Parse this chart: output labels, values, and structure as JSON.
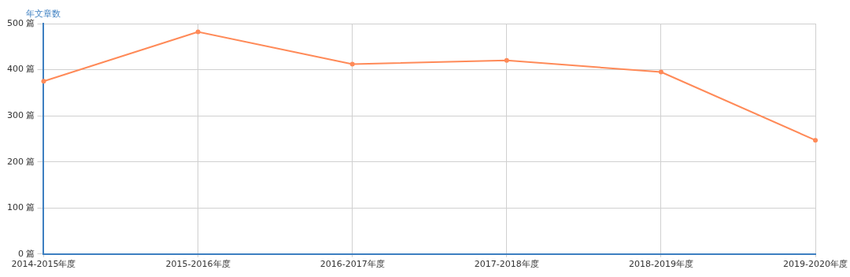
{
  "chart_data": {
    "type": "line",
    "ylabel": "年文章数",
    "categories": [
      "2014-2015年度",
      "2015-2016年度",
      "2016-2017年度",
      "2017-2018年度",
      "2018-2019年度",
      "2019-2020年度"
    ],
    "series": [
      {
        "color": "#ff8a58",
        "values": [
          375,
          482,
          412,
          420,
          395,
          247
        ]
      }
    ],
    "ylim": [
      0,
      500
    ],
    "yticks": [
      {
        "value": 0,
        "label": "0 篇"
      },
      {
        "value": 100,
        "label": "100 篇"
      },
      {
        "value": 200,
        "label": "200 篇"
      },
      {
        "value": 300,
        "label": "300 篇"
      },
      {
        "value": 400,
        "label": "400 篇"
      },
      {
        "value": 500,
        "label": "500 篇"
      }
    ],
    "grid": true,
    "legend": false,
    "marker": "circle",
    "line_style": "solid"
  }
}
